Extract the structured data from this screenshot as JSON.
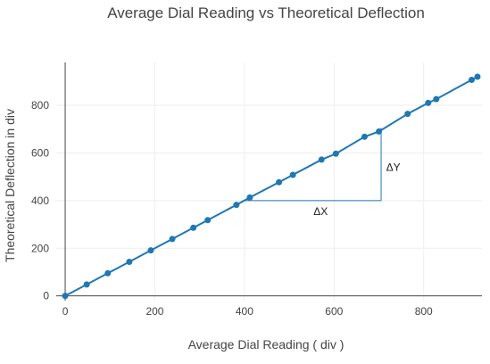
{
  "chart_data": {
    "type": "scatter",
    "title": "Average Dial Reading vs Theoretical Deflection",
    "xlabel": "Average Dial Reading ( div )",
    "ylabel": "Theoretical Deflection in div",
    "xlim": [
      -20,
      930
    ],
    "ylim": [
      -20,
      980
    ],
    "xticks": [
      0,
      200,
      400,
      600,
      800
    ],
    "xtick_labels": [
      "0",
      "200",
      "400",
      "600",
      "800"
    ],
    "yticks": [
      0,
      200,
      400,
      600,
      800
    ],
    "ytick_labels": [
      "0",
      "200",
      "400",
      "600",
      "800"
    ],
    "grid": true,
    "legend": false,
    "colors": {
      "series": "#1f77b4"
    },
    "series": [
      {
        "mode": "lines+markers",
        "x": [
          0,
          48,
          95,
          143,
          191,
          239,
          286,
          318,
          382,
          412,
          477,
          508,
          572,
          604,
          668,
          700,
          764,
          810,
          828,
          907,
          920
        ],
        "y": [
          0,
          48,
          95,
          143,
          191,
          239,
          286,
          318,
          382,
          413,
          477,
          508,
          572,
          597,
          668,
          690,
          764,
          810,
          826,
          907,
          920
        ]
      }
    ],
    "annotations": [
      {
        "text": "ΔX",
        "x": 570,
        "y": 355
      },
      {
        "text": "ΔY",
        "x": 732,
        "y": 540
      }
    ],
    "triangle": {
      "x0": 400,
      "x1": 705,
      "y0": 400,
      "y1": 705
    }
  }
}
